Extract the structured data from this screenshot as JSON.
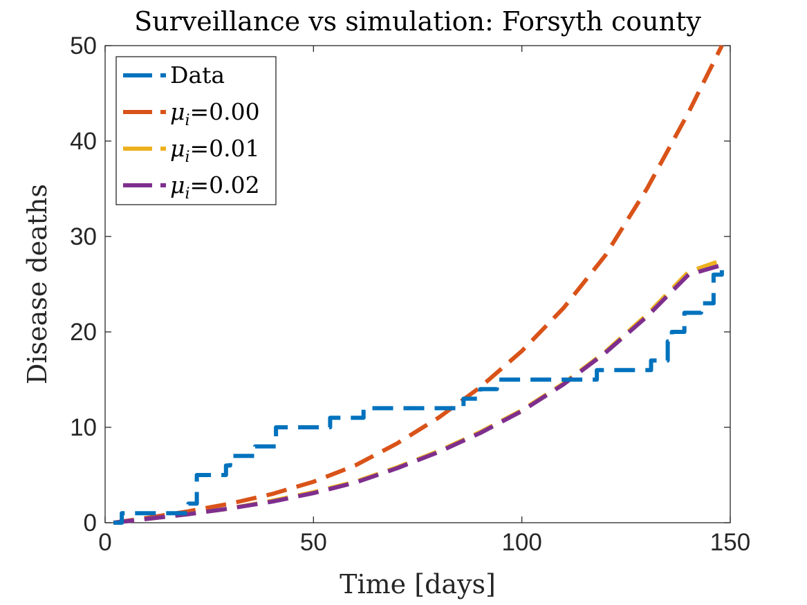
{
  "chart_data": {
    "type": "line",
    "title": "Surveillance vs simulation: Forsyth county",
    "xlabel": "Time [days]",
    "ylabel": "Disease deaths",
    "xlim": [
      0,
      150
    ],
    "ylim": [
      0,
      50
    ],
    "xticks": [
      0,
      50,
      100,
      150
    ],
    "yticks": [
      0,
      10,
      20,
      30,
      40,
      50
    ],
    "grid": false,
    "legend_position": "top-left",
    "series": [
      {
        "name": "Data",
        "legend_base": "Data",
        "legend_sub": "",
        "legend_value": "",
        "color": "#0072BD",
        "step": true,
        "x": [
          2,
          3,
          4,
          19,
          20,
          22,
          28,
          29,
          30,
          36,
          39,
          41,
          52,
          54,
          60,
          62,
          86,
          90,
          94,
          116,
          118,
          130,
          131,
          135,
          136,
          139,
          141,
          143,
          146,
          148
        ],
        "y": [
          0,
          0,
          1,
          1,
          2,
          5,
          5,
          6,
          7,
          8,
          8,
          10,
          10,
          11,
          11,
          12,
          13,
          14,
          15,
          15,
          16,
          16,
          17,
          19,
          20,
          22,
          22,
          23,
          26,
          27
        ]
      },
      {
        "name": "μi=0.00",
        "legend_base": "μ",
        "legend_sub": "i",
        "legend_value": "=0.00",
        "color": "#D95319",
        "step": false,
        "x": [
          2,
          10,
          20,
          30,
          40,
          50,
          60,
          70,
          80,
          90,
          100,
          110,
          120,
          130,
          140,
          148
        ],
        "y": [
          0,
          0.5,
          1.2,
          2.0,
          3.0,
          4.3,
          6.0,
          8.3,
          11.0,
          14.2,
          18.0,
          22.5,
          28.0,
          35.0,
          43.0,
          50.0
        ]
      },
      {
        "name": "μi=0.01",
        "legend_base": "μ",
        "legend_sub": "i",
        "legend_value": "=0.01",
        "color": "#EDB120",
        "step": false,
        "x": [
          2,
          10,
          20,
          30,
          40,
          50,
          60,
          70,
          80,
          90,
          100,
          110,
          120,
          130,
          140,
          148
        ],
        "y": [
          0,
          0.4,
          0.9,
          1.5,
          2.3,
          3.2,
          4.3,
          5.8,
          7.5,
          9.5,
          11.8,
          14.6,
          17.9,
          21.8,
          26.3,
          27.5
        ]
      },
      {
        "name": "μi=0.02",
        "legend_base": "μ",
        "legend_sub": "i",
        "legend_value": "=0.02",
        "color": "#7E2F8E",
        "step": false,
        "x": [
          2,
          10,
          20,
          30,
          40,
          50,
          60,
          70,
          80,
          90,
          100,
          110,
          120,
          130,
          140,
          148
        ],
        "y": [
          0,
          0.4,
          0.9,
          1.5,
          2.2,
          3.1,
          4.2,
          5.7,
          7.4,
          9.4,
          11.7,
          14.5,
          17.8,
          21.6,
          26.0,
          27.0
        ]
      }
    ]
  }
}
